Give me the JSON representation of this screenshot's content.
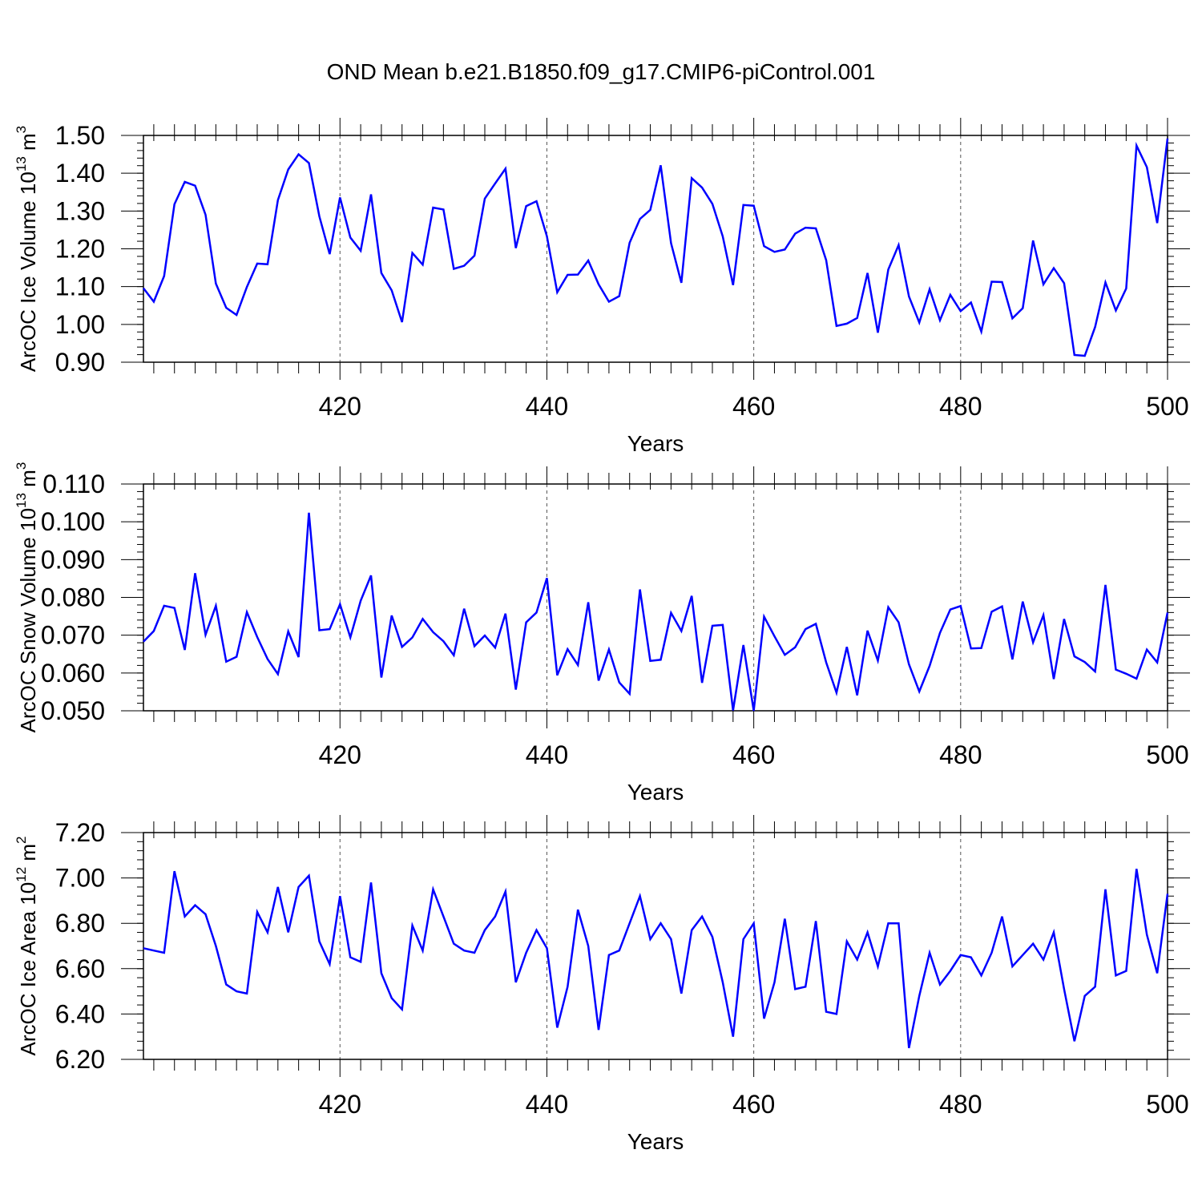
{
  "title": "OND Mean b.e21.B1850.f09_g17.CMIP6-piControl.001",
  "line_color": "#0000ff",
  "chart_data": [
    {
      "type": "line",
      "xlabel": "Years",
      "ylabel_main": "ArcOC Ice Volume 10",
      "ylabel_exp1": "13",
      "ylabel_unit": " m",
      "ylabel_exp2": "3",
      "xlim": [
        401,
        500
      ],
      "ylim": [
        0.9,
        1.5
      ],
      "xticks": [
        420,
        440,
        460,
        480,
        500
      ],
      "xtick_labels": [
        "420",
        "440",
        "460",
        "480",
        "500"
      ],
      "yticks": [
        0.9,
        1.0,
        1.1,
        1.2,
        1.3,
        1.4,
        1.5
      ],
      "ytick_labels": [
        "0.90",
        "1.00",
        "1.10",
        "1.20",
        "1.30",
        "1.40",
        "1.50"
      ],
      "grid": "dashed vertical at major x ticks",
      "x": [
        401,
        402,
        403,
        404,
        405,
        406,
        407,
        408,
        409,
        410,
        411,
        412,
        413,
        414,
        415,
        416,
        417,
        418,
        419,
        420,
        421,
        422,
        423,
        424,
        425,
        426,
        427,
        428,
        429,
        430,
        431,
        432,
        433,
        434,
        435,
        436,
        437,
        438,
        439,
        440,
        441,
        442,
        443,
        444,
        445,
        446,
        447,
        448,
        449,
        450,
        451,
        452,
        453,
        454,
        455,
        456,
        457,
        458,
        459,
        460,
        461,
        462,
        463,
        464,
        465,
        466,
        467,
        468,
        469,
        470,
        471,
        472,
        473,
        474,
        475,
        476,
        477,
        478,
        479,
        480,
        481,
        482,
        483,
        484,
        485,
        486,
        487,
        488,
        489,
        490,
        491,
        492,
        493,
        494,
        495,
        496,
        497,
        498,
        499,
        500
      ],
      "values": [
        1.096,
        1.06,
        1.128,
        1.318,
        1.377,
        1.367,
        1.29,
        1.108,
        1.044,
        1.025,
        1.099,
        1.161,
        1.159,
        1.329,
        1.41,
        1.45,
        1.427,
        1.286,
        1.186,
        1.336,
        1.23,
        1.195,
        1.344,
        1.136,
        1.09,
        1.006,
        1.189,
        1.158,
        1.309,
        1.304,
        1.147,
        1.155,
        1.182,
        1.333,
        1.373,
        1.412,
        1.202,
        1.313,
        1.326,
        1.233,
        1.085,
        1.131,
        1.132,
        1.169,
        1.106,
        1.06,
        1.075,
        1.216,
        1.279,
        1.303,
        1.421,
        1.215,
        1.11,
        1.387,
        1.362,
        1.319,
        1.233,
        1.104,
        1.316,
        1.314,
        1.207,
        1.192,
        1.198,
        1.24,
        1.256,
        1.254,
        1.17,
        0.996,
        1.002,
        1.017,
        1.136,
        0.978,
        1.145,
        1.21,
        1.074,
        1.005,
        1.093,
        1.011,
        1.078,
        1.035,
        1.058,
        0.981,
        1.113,
        1.112,
        1.016,
        1.043,
        1.222,
        1.106,
        1.149,
        1.109,
        0.919,
        0.917,
        0.993,
        1.111,
        1.037,
        1.095,
        1.473,
        1.416,
        1.268,
        1.492
      ]
    },
    {
      "type": "line",
      "xlabel": "Years",
      "ylabel_main": "ArcOC Snow Volume 10",
      "ylabel_exp1": "13",
      "ylabel_unit": " m",
      "ylabel_exp2": "3",
      "xlim": [
        401,
        500
      ],
      "ylim": [
        0.05,
        0.11
      ],
      "xticks": [
        420,
        440,
        460,
        480,
        500
      ],
      "xtick_labels": [
        "420",
        "440",
        "460",
        "480",
        "500"
      ],
      "yticks": [
        0.05,
        0.06,
        0.07,
        0.08,
        0.09,
        0.1,
        0.11
      ],
      "ytick_labels": [
        "0.050",
        "0.060",
        "0.070",
        "0.080",
        "0.090",
        "0.100",
        "0.110"
      ],
      "grid": "dashed vertical at major x ticks",
      "x": [
        401,
        402,
        403,
        404,
        405,
        406,
        407,
        408,
        409,
        410,
        411,
        412,
        413,
        414,
        415,
        416,
        417,
        418,
        419,
        420,
        421,
        422,
        423,
        424,
        425,
        426,
        427,
        428,
        429,
        430,
        431,
        432,
        433,
        434,
        435,
        436,
        437,
        438,
        439,
        440,
        441,
        442,
        443,
        444,
        445,
        446,
        447,
        448,
        449,
        450,
        451,
        452,
        453,
        454,
        455,
        456,
        457,
        458,
        459,
        460,
        461,
        462,
        463,
        464,
        465,
        466,
        467,
        468,
        469,
        470,
        471,
        472,
        473,
        474,
        475,
        476,
        477,
        478,
        479,
        480,
        481,
        482,
        483,
        484,
        485,
        486,
        487,
        488,
        489,
        490,
        491,
        492,
        493,
        494,
        495,
        496,
        497,
        498,
        499,
        500
      ],
      "values": [
        0.0683,
        0.0711,
        0.0778,
        0.0772,
        0.0661,
        0.0864,
        0.0701,
        0.0778,
        0.063,
        0.0643,
        0.0761,
        0.0695,
        0.0637,
        0.0597,
        0.071,
        0.0642,
        0.1024,
        0.0713,
        0.0716,
        0.0782,
        0.0694,
        0.0791,
        0.0858,
        0.0588,
        0.0752,
        0.0669,
        0.0694,
        0.0743,
        0.0708,
        0.0684,
        0.0647,
        0.077,
        0.0671,
        0.0699,
        0.0667,
        0.0757,
        0.0556,
        0.0734,
        0.076,
        0.0851,
        0.0594,
        0.0663,
        0.0621,
        0.0787,
        0.058,
        0.0662,
        0.0575,
        0.0545,
        0.0821,
        0.0632,
        0.0635,
        0.0759,
        0.0711,
        0.0804,
        0.0574,
        0.0725,
        0.0727,
        0.0501,
        0.0674,
        0.05,
        0.0749,
        0.0697,
        0.0648,
        0.0668,
        0.0716,
        0.073,
        0.0628,
        0.0548,
        0.0669,
        0.0541,
        0.0712,
        0.0633,
        0.0774,
        0.0734,
        0.0623,
        0.0551,
        0.0619,
        0.0706,
        0.0768,
        0.0777,
        0.0665,
        0.0666,
        0.0762,
        0.0776,
        0.0636,
        0.0789,
        0.0681,
        0.0753,
        0.0584,
        0.0743,
        0.0644,
        0.0629,
        0.0604,
        0.0833,
        0.0609,
        0.0598,
        0.0585,
        0.0662,
        0.0628,
        0.076
      ]
    },
    {
      "type": "line",
      "xlabel": "Years",
      "ylabel_main": "ArcOC Ice Area 10",
      "ylabel_exp1": "12",
      "ylabel_unit": " m",
      "ylabel_exp2": "2",
      "xlim": [
        401,
        500
      ],
      "ylim": [
        6.2,
        7.2
      ],
      "xticks": [
        420,
        440,
        460,
        480,
        500
      ],
      "xtick_labels": [
        "420",
        "440",
        "460",
        "480",
        "500"
      ],
      "yticks": [
        6.2,
        6.4,
        6.6,
        6.8,
        7.0,
        7.2
      ],
      "ytick_labels": [
        "6.20",
        "6.40",
        "6.60",
        "6.80",
        "7.00",
        "7.20"
      ],
      "grid": "dashed vertical at major x ticks",
      "x": [
        401,
        402,
        403,
        404,
        405,
        406,
        407,
        408,
        409,
        410,
        411,
        412,
        413,
        414,
        415,
        416,
        417,
        418,
        419,
        420,
        421,
        422,
        423,
        424,
        425,
        426,
        427,
        428,
        429,
        430,
        431,
        432,
        433,
        434,
        435,
        436,
        437,
        438,
        439,
        440,
        441,
        442,
        443,
        444,
        445,
        446,
        447,
        448,
        449,
        450,
        451,
        452,
        453,
        454,
        455,
        456,
        457,
        458,
        459,
        460,
        461,
        462,
        463,
        464,
        465,
        466,
        467,
        468,
        469,
        470,
        471,
        472,
        473,
        474,
        475,
        476,
        477,
        478,
        479,
        480,
        481,
        482,
        483,
        484,
        485,
        486,
        487,
        488,
        489,
        490,
        491,
        492,
        493,
        494,
        495,
        496,
        497,
        498,
        499,
        500
      ],
      "values": [
        6.69,
        6.68,
        6.67,
        7.03,
        6.83,
        6.88,
        6.84,
        6.7,
        6.53,
        6.5,
        6.49,
        6.85,
        6.76,
        6.96,
        6.76,
        6.96,
        7.01,
        6.72,
        6.62,
        6.92,
        6.65,
        6.63,
        6.98,
        6.58,
        6.47,
        6.42,
        6.79,
        6.68,
        6.95,
        6.83,
        6.71,
        6.68,
        6.67,
        6.77,
        6.83,
        6.94,
        6.54,
        6.67,
        6.77,
        6.69,
        6.34,
        6.52,
        6.86,
        6.7,
        6.33,
        6.66,
        6.68,
        6.8,
        6.92,
        6.73,
        6.8,
        6.73,
        6.49,
        6.77,
        6.83,
        6.74,
        6.54,
        6.3,
        6.73,
        6.8,
        6.38,
        6.54,
        6.82,
        6.51,
        6.52,
        6.81,
        6.41,
        6.4,
        6.72,
        6.64,
        6.76,
        6.61,
        6.8,
        6.8,
        6.25,
        6.48,
        6.67,
        6.53,
        6.59,
        6.66,
        6.65,
        6.57,
        6.67,
        6.83,
        6.61,
        6.66,
        6.71,
        6.64,
        6.76,
        6.51,
        6.28,
        6.48,
        6.52,
        6.95,
        6.57,
        6.59,
        7.04,
        6.75,
        6.58,
        6.93
      ]
    }
  ]
}
